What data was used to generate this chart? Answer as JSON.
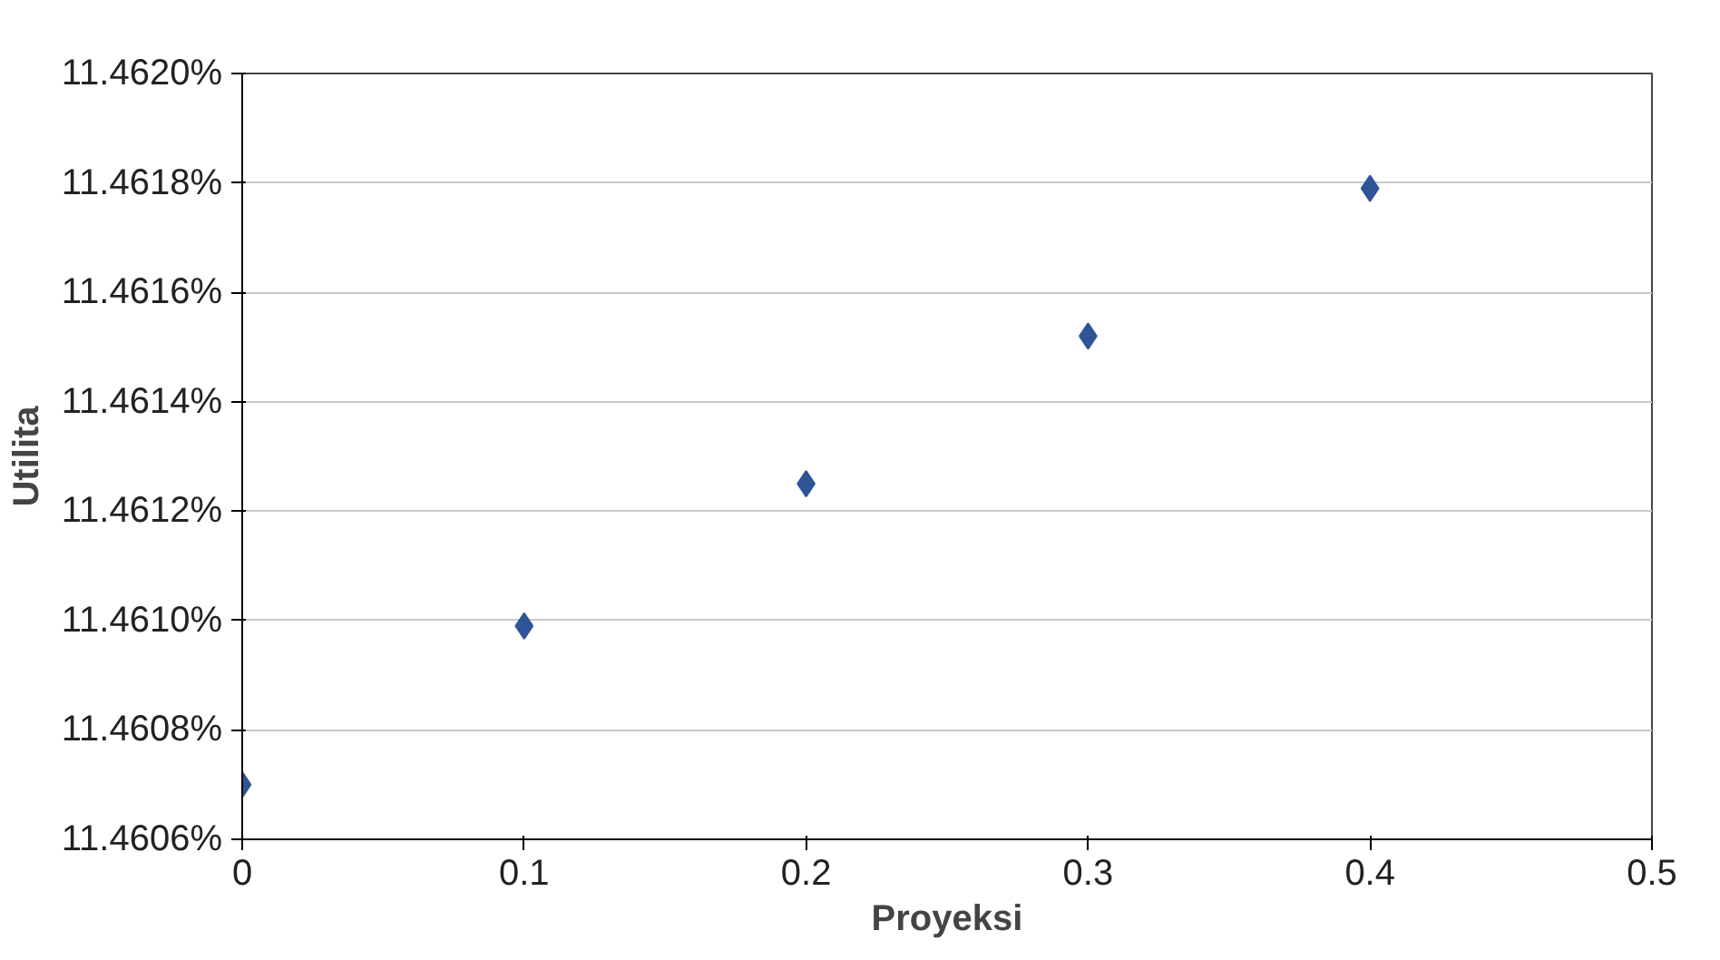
{
  "chart_data": {
    "type": "scatter",
    "xlabel": "Proyeksi",
    "ylabel": "Utilita",
    "x": [
      0,
      0.1,
      0.2,
      0.3,
      0.4
    ],
    "series": [
      {
        "color": "#2f5597",
        "values": [
          11.4607,
          11.46099,
          11.46125,
          11.46152,
          11.46179
        ]
      }
    ],
    "xlim": [
      0,
      0.5
    ],
    "xticks": [
      0,
      0.1,
      0.2,
      0.3,
      0.4,
      0.5
    ],
    "ylim": [
      11.4606,
      11.462
    ],
    "yticks": [
      {
        "value": 11.4606,
        "label": "11.4606%"
      },
      {
        "value": 11.4608,
        "label": "11.4608%"
      },
      {
        "value": 11.461,
        "label": "11.4610%"
      },
      {
        "value": 11.4612,
        "label": "11.4612%"
      },
      {
        "value": 11.4614,
        "label": "11.4614%"
      },
      {
        "value": 11.4616,
        "label": "11.4616%"
      },
      {
        "value": 11.4618,
        "label": "11.4618%"
      },
      {
        "value": 11.462,
        "label": "11.4620%"
      }
    ],
    "grid": "y",
    "marker": "diamond"
  }
}
